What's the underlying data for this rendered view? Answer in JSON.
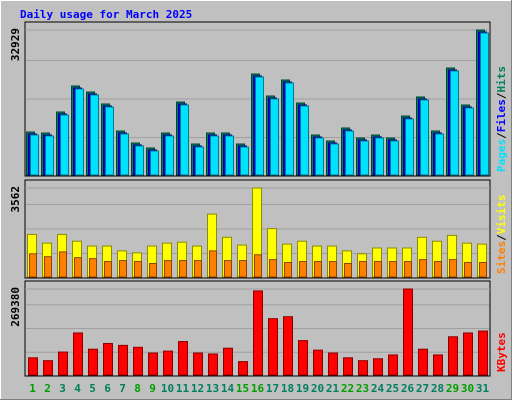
{
  "chart_data": {
    "type": "bar",
    "title": "Daily usage for March 2025",
    "categories": [
      "1",
      "2",
      "3",
      "4",
      "5",
      "6",
      "7",
      "8",
      "9",
      "10",
      "11",
      "12",
      "13",
      "14",
      "15",
      "16",
      "17",
      "18",
      "19",
      "20",
      "21",
      "22",
      "23",
      "24",
      "25",
      "26",
      "27",
      "28",
      "29",
      "30",
      "31"
    ],
    "weekend": [
      true,
      true,
      false,
      false,
      false,
      false,
      false,
      true,
      true,
      false,
      false,
      false,
      false,
      false,
      true,
      true,
      false,
      false,
      false,
      false,
      false,
      true,
      true,
      false,
      false,
      false,
      false,
      false,
      true,
      true,
      false
    ],
    "weekday_color": "#00805c",
    "weekend_color": "#00805c",
    "separator": "/",
    "panels": [
      {
        "ylim": [
          0,
          32929
        ],
        "yticks": [
          32929
        ],
        "series": [
          {
            "name": "Hits",
            "color": "#00805c",
            "values": [
              9765,
              9538,
              14307,
              20212,
              18849,
              16124,
              9992,
              7267,
              6132,
              9538,
              16578,
              7040,
              9538,
              9538,
              7040,
              22937,
              17941,
              21574,
              16351,
              9084,
              7721,
              10674,
              8403,
              9084,
              8403,
              13399,
              17714,
              9992,
              24299,
              15897,
              32929
            ]
          },
          {
            "name": "Files",
            "color": "#0000ff",
            "values": [
              9311,
              9084,
              13853,
              19758,
              18395,
              15670,
              9538,
              6813,
              5678,
              9084,
              16124,
              6586,
              9084,
              9084,
              6586,
              22483,
              17487,
              21120,
              15897,
              8630,
              7267,
              10220,
              7949,
              8630,
              7949,
              12945,
              17260,
              9538,
              23845,
              15443,
              32475
            ]
          },
          {
            "name": "Pages",
            "color": "#00e0ff",
            "values": [
              9085,
              8858,
              13627,
              19532,
              18169,
              15444,
              9312,
              6587,
              5452,
              8858,
              15898,
              6360,
              8858,
              8858,
              6360,
              22257,
              17261,
              20894,
              15671,
              8404,
              7041,
              9994,
              7723,
              8404,
              7723,
              12719,
              17034,
              9312,
              23619,
              15217,
              32249
            ]
          }
        ]
      },
      {
        "ylim": [
          0,
          3562
        ],
        "yticks": [
          3562
        ],
        "series": [
          {
            "name": "Visits",
            "color": "#ffff00",
            "values": [
              1703,
              1355,
              1703,
              1432,
              1238,
              1238,
              1045,
              968,
              1238,
              1355,
              1393,
              1238,
              2516,
              1587,
              1277,
              3562,
              1935,
              1316,
              1432,
              1238,
              1238,
              1045,
              929,
              1161,
              1161,
              1161,
              1587,
              1432,
              1664,
              1355,
              1316
            ]
          },
          {
            "name": "Sites",
            "color": "#ff8000",
            "values": [
              929,
              813,
              1006,
              774,
              735,
              619,
              658,
              619,
              542,
              658,
              658,
              658,
              1045,
              658,
              658,
              890,
              697,
              581,
              619,
              619,
              619,
              542,
              619,
              619,
              619,
              619,
              697,
              619,
              697,
              581,
              581
            ]
          }
        ]
      },
      {
        "ylim": [
          0,
          269380
        ],
        "yticks": [
          269380
        ],
        "series": [
          {
            "name": "KBytes",
            "color": "#ff0000",
            "values": [
              53874,
              44895,
              71832,
              131692,
              80811,
              98769,
              92783,
              86797,
              68839,
              74825,
              104755,
              68839,
              65846,
              83804,
              41902,
              263384,
              176587,
              182573,
              107748,
              77818,
              68839,
              53874,
              44895,
              50881,
              62853,
              269380,
              80811,
              62853,
              119720,
              131692,
              137678
            ]
          }
        ]
      }
    ]
  }
}
